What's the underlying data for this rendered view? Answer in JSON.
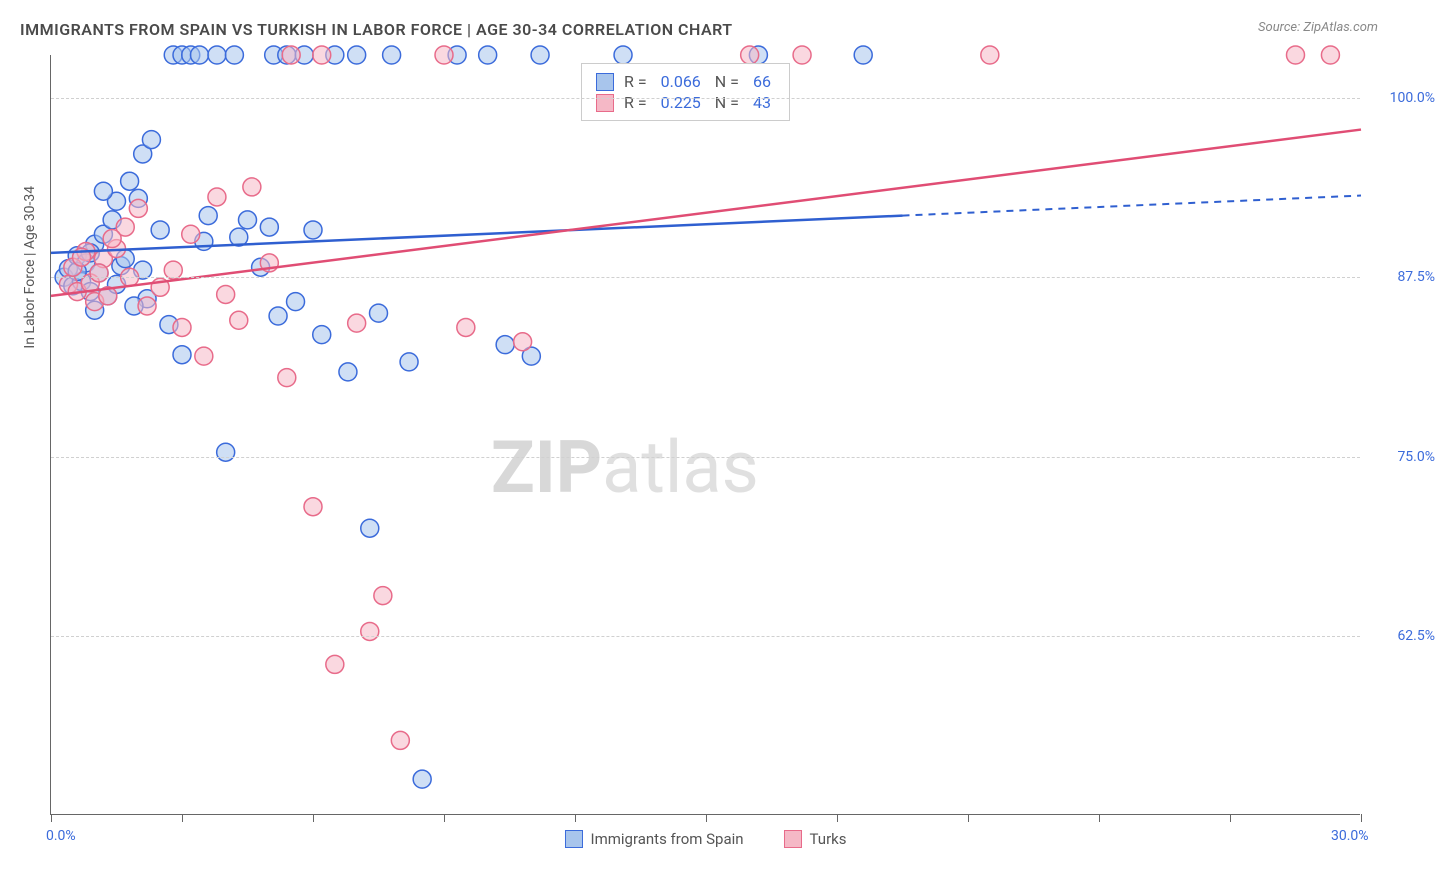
{
  "title": "IMMIGRANTS FROM SPAIN VS TURKISH IN LABOR FORCE | AGE 30-34 CORRELATION CHART",
  "source": "Source: ZipAtlas.com",
  "y_axis_label": "In Labor Force | Age 30-34",
  "watermark_bold": "ZIP",
  "watermark_rest": "atlas",
  "chart": {
    "type": "scatter",
    "xlim": [
      0,
      30
    ],
    "ylim": [
      50,
      103
    ],
    "x_ticks": [
      0,
      3,
      6,
      9,
      12,
      15,
      18,
      21,
      24,
      27,
      30
    ],
    "y_gridlines": [
      62.5,
      75.0,
      87.5,
      100.0
    ],
    "y_tick_labels": [
      "62.5%",
      "75.0%",
      "87.5%",
      "100.0%"
    ],
    "x_tick_labels": {
      "0": "0.0%",
      "30": "30.0%"
    },
    "grid_color": "#d0d0d0",
    "axis_color": "#666666",
    "label_color": "#3b6bdb",
    "background_color": "#ffffff",
    "point_radius": 9,
    "point_stroke_width": 1.5,
    "line_width": 2.5,
    "series": [
      {
        "name": "Immigrants from Spain",
        "fill": "#a8c5ec",
        "stroke": "#3b6bdb",
        "fill_opacity": 0.55,
        "R": "0.066",
        "N": "66",
        "trend": {
          "x1": 0,
          "y1": 89.2,
          "x2": 19.5,
          "y2": 91.8,
          "x3": 30,
          "y3": 93.2,
          "color": "#2f5fd0",
          "dash_after": true
        },
        "points": [
          [
            0.3,
            87.5
          ],
          [
            0.4,
            88.1
          ],
          [
            0.5,
            86.9
          ],
          [
            0.6,
            89.0
          ],
          [
            0.7,
            87.2
          ],
          [
            0.8,
            88.5
          ],
          [
            0.9,
            86.5
          ],
          [
            1.0,
            89.8
          ],
          [
            1.1,
            87.8
          ],
          [
            1.2,
            90.5
          ],
          [
            1.3,
            86.2
          ],
          [
            1.4,
            91.5
          ],
          [
            1.5,
            92.8
          ],
          [
            1.6,
            88.3
          ],
          [
            1.8,
            94.2
          ],
          [
            2.0,
            93.0
          ],
          [
            2.1,
            96.1
          ],
          [
            2.2,
            86.0
          ],
          [
            2.3,
            97.1
          ],
          [
            2.5,
            90.8
          ],
          [
            2.7,
            84.2
          ],
          [
            2.8,
            103
          ],
          [
            3.0,
            103
          ],
          [
            3.0,
            82.1
          ],
          [
            3.2,
            103
          ],
          [
            3.4,
            103
          ],
          [
            3.5,
            90.0
          ],
          [
            3.6,
            91.8
          ],
          [
            3.8,
            103
          ],
          [
            4.0,
            75.3
          ],
          [
            4.2,
            103
          ],
          [
            4.3,
            90.3
          ],
          [
            4.5,
            91.5
          ],
          [
            4.8,
            88.2
          ],
          [
            5.0,
            91.0
          ],
          [
            5.1,
            103
          ],
          [
            5.2,
            84.8
          ],
          [
            5.4,
            103
          ],
          [
            5.6,
            85.8
          ],
          [
            5.8,
            103
          ],
          [
            6.0,
            90.8
          ],
          [
            6.2,
            83.5
          ],
          [
            6.5,
            103
          ],
          [
            6.8,
            80.9
          ],
          [
            7.0,
            103
          ],
          [
            7.3,
            70.0
          ],
          [
            7.5,
            85.0
          ],
          [
            7.8,
            103
          ],
          [
            8.2,
            81.6
          ],
          [
            8.5,
            52.5
          ],
          [
            9.3,
            103
          ],
          [
            10.0,
            103
          ],
          [
            10.4,
            82.8
          ],
          [
            11.0,
            82.0
          ],
          [
            11.2,
            103
          ],
          [
            13.1,
            103
          ],
          [
            16.2,
            103
          ],
          [
            18.6,
            103
          ],
          [
            1.0,
            85.2
          ],
          [
            1.5,
            87.0
          ],
          [
            0.6,
            87.9
          ],
          [
            0.9,
            89.2
          ],
          [
            1.7,
            88.8
          ],
          [
            2.1,
            88.0
          ],
          [
            1.2,
            93.5
          ],
          [
            1.9,
            85.5
          ]
        ]
      },
      {
        "name": "Turks",
        "fill": "#f5b8c6",
        "stroke": "#e86b8a",
        "fill_opacity": 0.55,
        "R": "0.225",
        "N": "43",
        "trend": {
          "x1": 0,
          "y1": 86.2,
          "x2": 30,
          "y2": 97.8,
          "color": "#e04d74",
          "dash_after": false
        },
        "points": [
          [
            0.4,
            87.0
          ],
          [
            0.5,
            88.2
          ],
          [
            0.6,
            86.5
          ],
          [
            0.8,
            89.3
          ],
          [
            0.9,
            87.1
          ],
          [
            1.0,
            85.8
          ],
          [
            1.2,
            88.8
          ],
          [
            1.3,
            86.2
          ],
          [
            1.5,
            89.5
          ],
          [
            1.7,
            91.0
          ],
          [
            1.8,
            87.5
          ],
          [
            2.0,
            92.3
          ],
          [
            2.2,
            85.5
          ],
          [
            2.5,
            86.8
          ],
          [
            2.8,
            88.0
          ],
          [
            3.0,
            84.0
          ],
          [
            3.2,
            90.5
          ],
          [
            3.5,
            82.0
          ],
          [
            3.8,
            93.1
          ],
          [
            4.0,
            86.3
          ],
          [
            4.3,
            84.5
          ],
          [
            4.6,
            93.8
          ],
          [
            5.0,
            88.5
          ],
          [
            5.4,
            80.5
          ],
          [
            5.5,
            103
          ],
          [
            6.0,
            71.5
          ],
          [
            6.2,
            103
          ],
          [
            6.5,
            60.5
          ],
          [
            7.0,
            84.3
          ],
          [
            7.3,
            62.8
          ],
          [
            7.6,
            65.3
          ],
          [
            8.0,
            55.2
          ],
          [
            9.0,
            103
          ],
          [
            9.5,
            84.0
          ],
          [
            10.8,
            83.0
          ],
          [
            16.0,
            103
          ],
          [
            17.2,
            103
          ],
          [
            21.5,
            103
          ],
          [
            28.5,
            103
          ],
          [
            29.3,
            103
          ],
          [
            1.1,
            87.8
          ],
          [
            0.7,
            88.9
          ],
          [
            1.4,
            90.2
          ]
        ]
      }
    ]
  },
  "legend": {
    "series1_label": "Immigrants from Spain",
    "series2_label": "Turks"
  },
  "stats_labels": {
    "R": "R =",
    "N": "N ="
  }
}
